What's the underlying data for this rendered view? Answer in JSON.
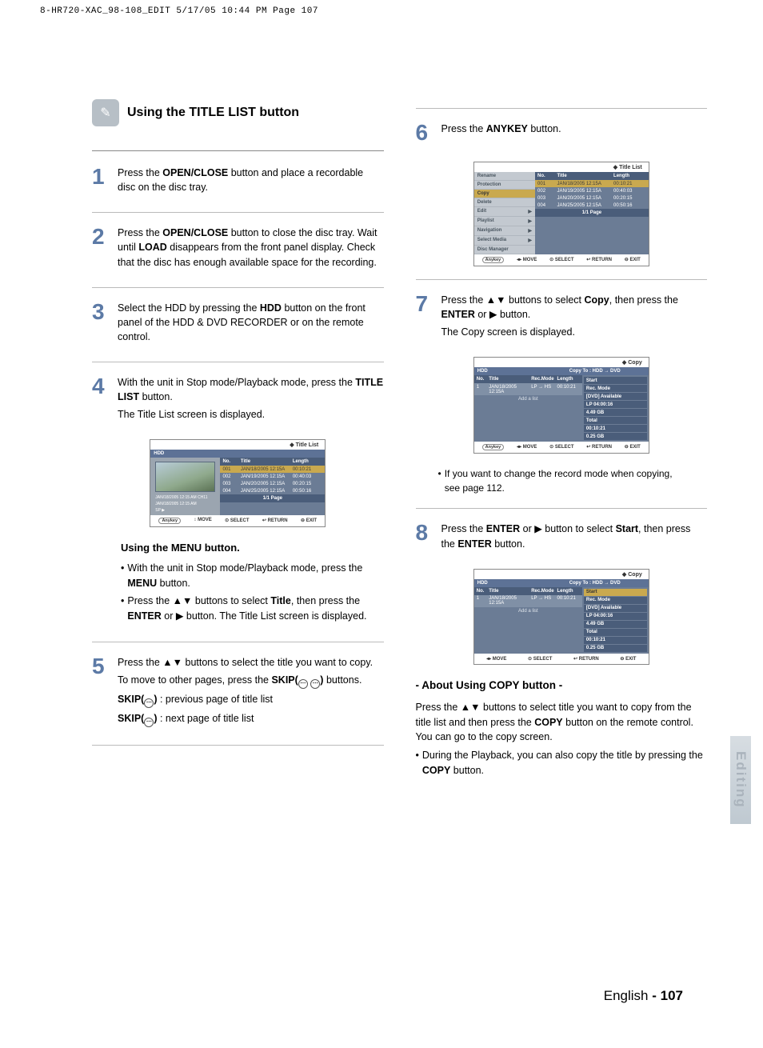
{
  "print_header": "8-HR720-XAC_98-108_EDIT  5/17/05  10:44 PM  Page 107",
  "section_title": "Using the TITLE LIST button",
  "side_tab": "Editing",
  "footer_lang": "English",
  "footer_page": "- 107",
  "steps_left": {
    "s1": {
      "num": "1",
      "html": "Press the <b>OPEN/CLOSE</b> button and place a recordable disc on the disc tray."
    },
    "s2": {
      "num": "2",
      "html": " Press the <b>OPEN/CLOSE</b> button to close the disc tray. Wait until <b>LOAD</b> disappears from the front panel display. Check that the disc has enough available space for the recording."
    },
    "s3": {
      "num": "3",
      "html": "Select the HDD by pressing the <b>HDD</b> button on the front panel of the HDD & DVD RECORDER or on the remote control."
    },
    "s4": {
      "num": "4",
      "html": "With the unit in Stop mode/Playback mode, press the <b>TITLE LIST</b> button.",
      "sub": "The Title List screen is displayed."
    },
    "s5": {
      "num": "5",
      "html": "Press the ▲▼ buttons to select the title you want to copy.",
      "l2_html": "To move to other pages, press the <b>SKIP(<span class=\"skip-icon\">⋯</span> <span class=\"skip-icon\">⋯</span>)</b> buttons.",
      "l3_html": "<b>SKIP(<span class=\"skip-icon\">⋯</span>)</b> : previous page of title list",
      "l4_html": "<b>SKIP(<span class=\"skip-icon\">⋯</span>)</b> : next page of title list"
    }
  },
  "using_menu": {
    "title": "Using the MENU button.",
    "b1_html": "With the unit in Stop mode/Playback mode, press the <b>MENU</b> button.",
    "b2_html": "Press the ▲▼ buttons to select <b>Title</b>, then press the <b>ENTER</b> or ▶ button. The Title List screen is displayed."
  },
  "steps_right": {
    "s6": {
      "num": "6",
      "html": "Press the <b>ANYKEY</b> button."
    },
    "s7": {
      "num": "7",
      "html": "Press the ▲▼ buttons to select <b>Copy</b>, then press the <b>ENTER</b> or ▶ button.",
      "sub": "The Copy screen is displayed."
    },
    "s7_note": "If you want to change the record mode when copying, see page 112.",
    "s8": {
      "num": "8",
      "html": "Press the <b>ENTER</b> or ▶ button to select <b>Start</b>, then press the <b>ENTER</b> button."
    }
  },
  "about_copy": {
    "title": "- About Using COPY button -",
    "p1_html": "Press the ▲▼ buttons to select title you want to copy from the title list and then press the <b>COPY</b> button on the remote control. You can go to the copy screen.",
    "b1_html": "During the Playback, you can also copy the title by pressing the <b>COPY</b> button."
  },
  "osd": {
    "title_list": {
      "head": "Title List",
      "sub_left": "HDD",
      "th": [
        "No.",
        "Title",
        "Length"
      ],
      "rows": [
        {
          "n": "001",
          "t": "JAN/18/2005 12:15A",
          "l": "00:10:21",
          "hl": true
        },
        {
          "n": "002",
          "t": "JAN/19/2005 12:15A",
          "l": "00:40:03"
        },
        {
          "n": "003",
          "t": "JAN/20/2005 12:15A",
          "l": "00:20:15"
        },
        {
          "n": "004",
          "t": "JAN/25/2005 12:15A",
          "l": "00:50:16"
        }
      ],
      "thumb_lines": [
        "JAN/18/2005 12:15 AM CH11",
        "JAN/18/2005 12:15 AM",
        "SP ▶"
      ],
      "page": "1/1 Page",
      "foot": [
        "Anykey",
        "↕ MOVE",
        "⊙ SELECT",
        "↩ RETURN",
        "⊖ EXIT"
      ]
    },
    "anykey_menu": {
      "head": "Title List",
      "items": [
        "Rename",
        "Protection",
        "Copy",
        "Delete",
        "Edit",
        "Playlist",
        "Navigation",
        "Select Media",
        "Disc Manager"
      ],
      "sel": "Copy",
      "arrows": [
        "Edit",
        "Playlist",
        "Navigation",
        "Select Media"
      ],
      "th": [
        "No.",
        "Title",
        "Length"
      ],
      "rows": [
        {
          "n": "001",
          "t": "JAN/18/2005 12:15A",
          "l": "00:10:21",
          "hl": true
        },
        {
          "n": "002",
          "t": "JAN/19/2005 12:15A",
          "l": "00:40:03"
        },
        {
          "n": "003",
          "t": "JAN/20/2005 12:15A",
          "l": "00:20:15"
        },
        {
          "n": "004",
          "t": "JAN/25/2005 12:15A",
          "l": "00:50:16"
        }
      ],
      "page": "1/1 Page",
      "foot": [
        "Anykey",
        "◂▸ MOVE",
        "⊙ SELECT",
        "↩ RETURN",
        "⊖ EXIT"
      ]
    },
    "copy1": {
      "head": "Copy",
      "sub_left": "HDD",
      "sub_right": "Copy To : HDD → DVD",
      "th": [
        "No.",
        "Title",
        "Rec.Mode",
        "Length"
      ],
      "row": [
        "1",
        "JAN/18/2005 12:15A",
        "LP → HS",
        "00:10:21"
      ],
      "add": "Add a list",
      "right": [
        "Start",
        "Rec. Mode",
        "[DVD] Available",
        "LP    04:00:16",
        "4.49 GB",
        "Total",
        "00:10:21",
        "0.25 GB"
      ],
      "foot": [
        "Anykey",
        "◂▸ MOVE",
        "⊙ SELECT",
        "↩ RETURN",
        "⊖ EXIT"
      ]
    },
    "copy2": {
      "head": "Copy",
      "sub_left": "HDD",
      "sub_right": "Copy To : HDD → DVD",
      "th": [
        "No.",
        "Title",
        "Rec.Mode",
        "Length"
      ],
      "row": [
        "1",
        "JAN/18/2005 12:15A",
        "LP → HS",
        "00:10:21"
      ],
      "add": "Add a list",
      "right": [
        "Start",
        "Rec. Mode",
        "[DVD] Available",
        "LP    04:00:16",
        "4.49 GB",
        "Total",
        "00:10:21",
        "0.25 GB"
      ],
      "hl": "Start",
      "foot": [
        "◂▸ MOVE",
        "⊙ SELECT",
        "↩ RETURN",
        "⊖ EXIT"
      ]
    }
  },
  "colors": {
    "step_num": "#5c7aa6",
    "osd_bg": "#6b7c95",
    "osd_dark": "#4a5d7a",
    "highlight": "#c9a94f",
    "menu_bg": "#c3c9d0"
  }
}
